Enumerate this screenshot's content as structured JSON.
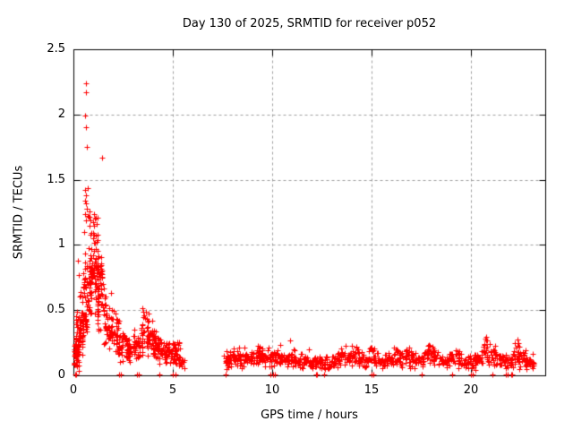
{
  "page": {
    "background": "#ffffff"
  },
  "chart_data": {
    "type": "scatter",
    "title": "Day 130 of 2025, SRMTID for receiver p052",
    "xlabel": "GPS time / hours",
    "ylabel": "SRMTID / TECUs",
    "xlim": [
      0,
      23.75
    ],
    "ylim": [
      0,
      2.5
    ],
    "xticks": [
      0,
      5,
      10,
      15,
      20
    ],
    "xtick_labels": [
      "0",
      "5",
      "10",
      "15",
      "20"
    ],
    "yticks": [
      0,
      0.5,
      1,
      1.5,
      2,
      2.5
    ],
    "ytick_labels": [
      "0",
      "0.5",
      "1",
      "1.5",
      "2",
      "2.5"
    ],
    "grid": true,
    "legend": "none",
    "marker": "plus",
    "marker_size_px": 7,
    "colors": {
      "marker": "#ff0000",
      "grid": "#a0a0a0",
      "axis": "#000000",
      "text": "#000000",
      "background": "#ffffff"
    },
    "data_gap_hours": [
      5.65,
      7.55
    ],
    "seed": 1337,
    "outlier_points": [
      [
        0.63,
        2.24
      ],
      [
        0.63,
        2.17
      ],
      [
        0.6,
        1.99
      ],
      [
        0.63,
        1.9
      ],
      [
        0.66,
        1.75
      ],
      [
        1.43,
        1.67
      ],
      [
        0.57,
        1.42
      ],
      [
        0.63,
        1.38
      ],
      [
        0.24,
        0.88
      ],
      [
        0.26,
        0.77
      ],
      [
        1.48,
        0.7
      ],
      [
        1.9,
        0.63
      ]
    ],
    "zero_hours": [
      0.07,
      0.12,
      2.3,
      2.38,
      3.22,
      3.3,
      4.32,
      5.02,
      5.12,
      7.64,
      9.92,
      10.06,
      10.12,
      12.2,
      12.26,
      12.62,
      15.0,
      15.08,
      17.55,
      19.05,
      20.0,
      20.08,
      21.1,
      21.75,
      21.85,
      22.02,
      22.1
    ],
    "clusters": {
      "note": "dense morning activity 0-5.6 h; boxes are [x_start, x_end, y_min, y_max, n_points]",
      "boxes": [
        [
          0.02,
          0.3,
          0.02,
          0.35,
          55
        ],
        [
          0.1,
          0.5,
          0.12,
          0.55,
          50
        ],
        [
          0.3,
          0.7,
          0.22,
          0.72,
          40
        ],
        [
          0.5,
          0.95,
          0.38,
          1.05,
          48
        ],
        [
          0.55,
          0.85,
          1.05,
          1.45,
          14
        ],
        [
          0.8,
          1.25,
          0.5,
          1.3,
          55
        ],
        [
          1.0,
          1.45,
          0.45,
          1.05,
          40
        ],
        [
          1.2,
          1.65,
          0.3,
          0.8,
          35
        ],
        [
          1.5,
          1.95,
          0.2,
          0.62,
          35
        ],
        [
          1.8,
          2.35,
          0.14,
          0.5,
          40
        ],
        [
          2.25,
          2.75,
          0.1,
          0.35,
          35
        ],
        [
          2.6,
          3.15,
          0.08,
          0.32,
          35
        ],
        [
          3.0,
          3.5,
          0.1,
          0.4,
          35
        ],
        [
          3.4,
          3.85,
          0.15,
          0.55,
          32
        ],
        [
          3.7,
          4.1,
          0.12,
          0.45,
          28
        ],
        [
          4.0,
          4.35,
          0.1,
          0.38,
          28
        ],
        [
          4.25,
          4.75,
          0.08,
          0.3,
          35
        ],
        [
          4.65,
          5.15,
          0.06,
          0.28,
          35
        ],
        [
          5.0,
          5.45,
          0.05,
          0.28,
          30
        ],
        [
          5.3,
          5.65,
          0.04,
          0.16,
          12
        ]
      ]
    },
    "band": {
      "note": "low quiet band 7.7-23.1 h; nodes are [hour, mean_value, half_spread]",
      "points_per_node": 14,
      "x_jitter": 0.26,
      "nodes": [
        [
          7.7,
          0.1,
          0.06
        ],
        [
          7.8,
          0.12,
          0.07
        ],
        [
          8.0,
          0.13,
          0.08
        ],
        [
          8.25,
          0.14,
          0.08
        ],
        [
          8.5,
          0.12,
          0.07
        ],
        [
          8.75,
          0.14,
          0.08
        ],
        [
          9.0,
          0.13,
          0.08
        ],
        [
          9.25,
          0.14,
          0.08
        ],
        [
          9.4,
          0.16,
          0.09
        ],
        [
          9.6,
          0.14,
          0.08
        ],
        [
          9.8,
          0.12,
          0.07
        ],
        [
          10.0,
          0.14,
          0.09
        ],
        [
          10.25,
          0.13,
          0.08
        ],
        [
          10.5,
          0.13,
          0.08
        ],
        [
          10.75,
          0.11,
          0.07
        ],
        [
          11.0,
          0.13,
          0.08
        ],
        [
          11.25,
          0.12,
          0.07
        ],
        [
          11.5,
          0.12,
          0.07
        ],
        [
          11.75,
          0.1,
          0.06
        ],
        [
          12.0,
          0.09,
          0.06
        ],
        [
          12.25,
          0.1,
          0.06
        ],
        [
          12.5,
          0.1,
          0.06
        ],
        [
          12.75,
          0.09,
          0.06
        ],
        [
          13.0,
          0.09,
          0.05
        ],
        [
          13.25,
          0.11,
          0.07
        ],
        [
          13.5,
          0.12,
          0.08
        ],
        [
          13.75,
          0.14,
          0.09
        ],
        [
          14.0,
          0.15,
          0.1
        ],
        [
          14.25,
          0.16,
          0.1
        ],
        [
          14.5,
          0.12,
          0.07
        ],
        [
          14.75,
          0.11,
          0.07
        ],
        [
          15.0,
          0.16,
          0.1
        ],
        [
          15.25,
          0.12,
          0.07
        ],
        [
          15.5,
          0.1,
          0.06
        ],
        [
          15.75,
          0.11,
          0.06
        ],
        [
          16.0,
          0.12,
          0.07
        ],
        [
          16.25,
          0.14,
          0.08
        ],
        [
          16.5,
          0.12,
          0.07
        ],
        [
          16.8,
          0.16,
          0.09
        ],
        [
          17.0,
          0.12,
          0.07
        ],
        [
          17.25,
          0.11,
          0.06
        ],
        [
          17.5,
          0.12,
          0.07
        ],
        [
          17.75,
          0.15,
          0.09
        ],
        [
          18.0,
          0.18,
          0.1
        ],
        [
          18.25,
          0.13,
          0.08
        ],
        [
          18.5,
          0.11,
          0.06
        ],
        [
          18.75,
          0.11,
          0.06
        ],
        [
          19.0,
          0.12,
          0.07
        ],
        [
          19.3,
          0.14,
          0.08
        ],
        [
          19.5,
          0.11,
          0.06
        ],
        [
          19.75,
          0.1,
          0.06
        ],
        [
          20.0,
          0.1,
          0.06
        ],
        [
          20.25,
          0.11,
          0.07
        ],
        [
          20.5,
          0.15,
          0.09
        ],
        [
          20.7,
          0.21,
          0.12
        ],
        [
          20.9,
          0.17,
          0.1
        ],
        [
          21.1,
          0.13,
          0.08
        ],
        [
          21.35,
          0.13,
          0.07
        ],
        [
          21.6,
          0.1,
          0.06
        ],
        [
          21.85,
          0.1,
          0.06
        ],
        [
          22.1,
          0.13,
          0.08
        ],
        [
          22.3,
          0.19,
          0.1
        ],
        [
          22.5,
          0.13,
          0.08
        ],
        [
          22.7,
          0.12,
          0.07
        ],
        [
          22.9,
          0.11,
          0.06
        ],
        [
          23.05,
          0.1,
          0.05
        ]
      ]
    }
  }
}
